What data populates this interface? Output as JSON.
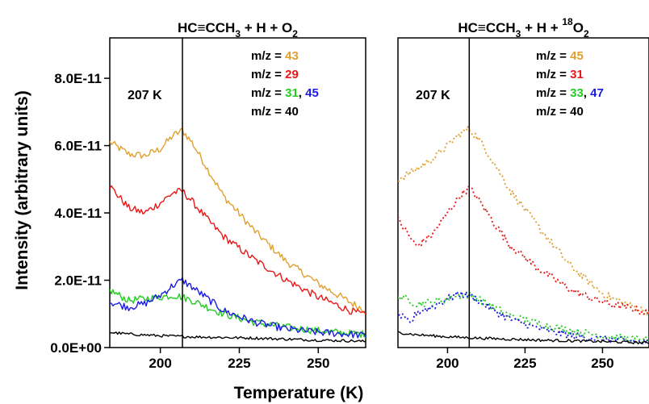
{
  "chart_data": [
    {
      "type": "line",
      "title_parts": [
        "HC≡CCH",
        "3",
        " + H + O",
        "2"
      ],
      "xlabel": "Temperature (K)",
      "ylabel": "Intensity (arbitrary units)",
      "xlim": [
        184,
        265
      ],
      "ylim": [
        0,
        9.2e-11
      ],
      "xticks": [
        200,
        225,
        250
      ],
      "yticks": [
        "0.0E+00",
        "2.0E-11",
        "4.0E-11",
        "6.0E-11",
        "8.0E-11"
      ],
      "ytick_values": [
        0,
        2e-11,
        4e-11,
        6e-11,
        8e-11
      ],
      "vline": 207,
      "annotation": "207 K",
      "legend_prefix": "m/z = ",
      "legend": [
        {
          "parts": [
            {
              "text": "43",
              "color": "#e0a030"
            }
          ]
        },
        {
          "parts": [
            {
              "text": "29",
              "color": "#e81818"
            }
          ]
        },
        {
          "parts": [
            {
              "text": "31",
              "color": "#22cc22"
            },
            {
              "text": ", ",
              "color": "#000000"
            },
            {
              "text": "45",
              "color": "#1c1ce0"
            }
          ]
        },
        {
          "parts": [
            {
              "text": "40",
              "color": "#000000"
            }
          ]
        }
      ],
      "series": [
        {
          "mz": "43",
          "color": "#e0a030",
          "style": "solid",
          "x": [
            184,
            190,
            195,
            200,
            204,
            207,
            210,
            215,
            220,
            230,
            240,
            250,
            260,
            265
          ],
          "y": [
            6.1e-11,
            5.75e-11,
            5.7e-11,
            5.9e-11,
            6.3e-11,
            6.45e-11,
            6.1e-11,
            5.3e-11,
            4.5e-11,
            3.45e-11,
            2.55e-11,
            1.9e-11,
            1.35e-11,
            1.1e-11
          ]
        },
        {
          "mz": "29",
          "color": "#e81818",
          "style": "solid",
          "x": [
            184,
            190,
            195,
            200,
            204,
            207,
            210,
            215,
            220,
            230,
            240,
            250,
            260,
            265
          ],
          "y": [
            4.8e-11,
            4.15e-11,
            4e-11,
            4.3e-11,
            4.6e-11,
            4.65e-11,
            4.35e-11,
            3.8e-11,
            3.3e-11,
            2.6e-11,
            2e-11,
            1.5e-11,
            1.1e-11,
            9.5e-12
          ]
        },
        {
          "mz": "31",
          "color": "#22cc22",
          "style": "solid",
          "x": [
            184,
            190,
            195,
            200,
            204,
            207,
            210,
            215,
            220,
            230,
            240,
            250,
            260,
            265
          ],
          "y": [
            1.7e-11,
            1.4e-11,
            1.45e-11,
            1.5e-11,
            1.55e-11,
            1.5e-11,
            1.4e-11,
            1.2e-11,
            1e-11,
            7.5e-12,
            6e-12,
            5e-12,
            4.2e-12,
            4e-12
          ]
        },
        {
          "mz": "45",
          "color": "#1c1ce0",
          "style": "solid",
          "x": [
            184,
            190,
            195,
            200,
            204,
            207,
            210,
            215,
            220,
            230,
            240,
            250,
            260,
            265
          ],
          "y": [
            1.35e-11,
            1.2e-11,
            1.3e-11,
            1.55e-11,
            1.85e-11,
            2e-11,
            1.8e-11,
            1.45e-11,
            1.1e-11,
            7.5e-12,
            5.5e-12,
            4.5e-12,
            4e-12,
            3.5e-12
          ]
        },
        {
          "mz": "40",
          "color": "#000000",
          "style": "solid",
          "x": [
            184,
            190,
            200,
            210,
            220,
            230,
            240,
            250,
            260,
            265
          ],
          "y": [
            4.5e-12,
            4e-12,
            3.5e-12,
            3.2e-12,
            3e-12,
            2.8e-12,
            2.5e-12,
            2.2e-12,
            2e-12,
            1.8e-12
          ]
        }
      ]
    },
    {
      "type": "line",
      "title_parts": [
        "HC≡CCH",
        "3",
        " + H + ",
        "18",
        "O",
        "2"
      ],
      "xlabel": "Temperature (K)",
      "ylabel": "",
      "xlim": [
        184,
        265
      ],
      "ylim": [
        0,
        9.2e-11
      ],
      "xticks": [
        200,
        225,
        250
      ],
      "vline": 207,
      "annotation": "207 K",
      "legend_prefix": "m/z = ",
      "legend": [
        {
          "parts": [
            {
              "text": "45",
              "color": "#e0a030"
            }
          ]
        },
        {
          "parts": [
            {
              "text": "31",
              "color": "#e81818"
            }
          ]
        },
        {
          "parts": [
            {
              "text": "33",
              "color": "#22cc22"
            },
            {
              "text": ", ",
              "color": "#000000"
            },
            {
              "text": "47",
              "color": "#1c1ce0"
            }
          ]
        },
        {
          "parts": [
            {
              "text": "40",
              "color": "#000000"
            }
          ]
        }
      ],
      "series": [
        {
          "mz": "45",
          "color": "#e0a030",
          "style": "dotted",
          "x": [
            184,
            190,
            195,
            200,
            204,
            207,
            210,
            215,
            220,
            230,
            240,
            250,
            260,
            265
          ],
          "y": [
            5e-11,
            5.3e-11,
            5.6e-11,
            6e-11,
            6.35e-11,
            6.5e-11,
            6.2e-11,
            5.5e-11,
            4.7e-11,
            3.5e-11,
            2.4e-11,
            1.6e-11,
            1.2e-11,
            1.05e-11
          ]
        },
        {
          "mz": "31",
          "color": "#e81818",
          "style": "dotted",
          "x": [
            184,
            190,
            195,
            200,
            204,
            207,
            210,
            215,
            220,
            230,
            240,
            250,
            260,
            265
          ],
          "y": [
            3.8e-11,
            3e-11,
            3.35e-11,
            4e-11,
            4.5e-11,
            4.75e-11,
            4.4e-11,
            3.7e-11,
            3.05e-11,
            2.3e-11,
            1.7e-11,
            1.35e-11,
            1.15e-11,
            1e-11
          ]
        },
        {
          "mz": "33",
          "color": "#22cc22",
          "style": "dotted",
          "x": [
            184,
            190,
            195,
            200,
            204,
            207,
            210,
            215,
            220,
            230,
            240,
            250,
            260,
            265
          ],
          "y": [
            1.55e-11,
            1.3e-11,
            1.35e-11,
            1.45e-11,
            1.55e-11,
            1.55e-11,
            1.45e-11,
            1.2e-11,
            9.5e-12,
            7e-12,
            5e-12,
            3.5e-12,
            2.5e-12,
            2.2e-12
          ]
        },
        {
          "mz": "47",
          "color": "#1c1ce0",
          "style": "dotted",
          "x": [
            184,
            188,
            190,
            195,
            200,
            204,
            207,
            210,
            215,
            220,
            230,
            240,
            250,
            260,
            265
          ],
          "y": [
            1e-11,
            7e-12,
            1.05e-11,
            1.2e-11,
            1.45e-11,
            1.6e-11,
            1.55e-11,
            1.4e-11,
            1.1e-11,
            8.5e-12,
            5.5e-12,
            3.5e-12,
            2.5e-12,
            1.8e-12,
            1.5e-12
          ]
        },
        {
          "mz": "40",
          "color": "#000000",
          "style": "solid",
          "x": [
            184,
            190,
            200,
            210,
            220,
            230,
            240,
            250,
            260,
            265
          ],
          "y": [
            4.5e-12,
            3.8e-12,
            3.2e-12,
            2.8e-12,
            2.5e-12,
            2.2e-12,
            2e-12,
            1.8e-12,
            1.5e-12,
            1.4e-12
          ]
        }
      ]
    }
  ]
}
